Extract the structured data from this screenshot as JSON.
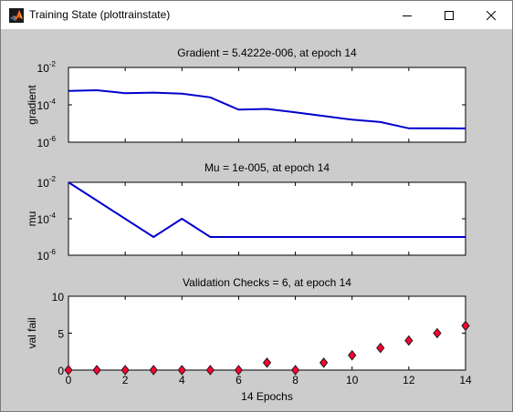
{
  "window": {
    "title": "Training State (plottrainstate)",
    "icon": "matlab-icon",
    "controls": [
      "minimize",
      "maximize",
      "close"
    ]
  },
  "chart_data": [
    {
      "type": "line",
      "title": "Gradient = 5.4222e-006, at epoch 14",
      "xlabel": "",
      "ylabel": "gradient",
      "yscale": "log",
      "ylim": [
        1e-06,
        0.01
      ],
      "xlim": [
        0,
        14
      ],
      "yticks": [
        {
          "value": 1e-06,
          "base": "10",
          "exp": "-6"
        },
        {
          "value": 0.0001,
          "base": "10",
          "exp": "-4"
        },
        {
          "value": 0.01,
          "base": "10",
          "exp": "-2"
        }
      ],
      "color": "#0000cc",
      "x": [
        0,
        1,
        2,
        3,
        4,
        5,
        6,
        7,
        8,
        9,
        10,
        11,
        12,
        13,
        14
      ],
      "y": [
        0.00055,
        0.0006,
        0.00042,
        0.00045,
        0.0004,
        0.00025,
        5.5e-05,
        6e-05,
        4e-05,
        2.5e-05,
        1.6e-05,
        1.2e-05,
        5.5e-06,
        5.5e-06,
        5.4222e-06
      ]
    },
    {
      "type": "line",
      "title": "Mu = 1e-005, at epoch 14",
      "xlabel": "",
      "ylabel": "mu",
      "yscale": "log",
      "ylim": [
        1e-06,
        0.01
      ],
      "xlim": [
        0,
        14
      ],
      "yticks": [
        {
          "value": 1e-06,
          "base": "10",
          "exp": "-6"
        },
        {
          "value": 0.0001,
          "base": "10",
          "exp": "-4"
        },
        {
          "value": 0.01,
          "base": "10",
          "exp": "-2"
        }
      ],
      "color": "#0000cc",
      "x": [
        0,
        1,
        2,
        3,
        4,
        5,
        6,
        7,
        8,
        9,
        10,
        11,
        12,
        13,
        14
      ],
      "y": [
        0.01,
        0.001,
        0.0001,
        1e-05,
        0.0001,
        1e-05,
        1e-05,
        1e-05,
        1e-05,
        1e-05,
        1e-05,
        1e-05,
        1e-05,
        1e-05,
        1e-05
      ]
    },
    {
      "type": "scatter",
      "title": "Validation Checks = 6, at epoch 14",
      "xlabel": "14 Epochs",
      "ylabel": "val fail",
      "yscale": "linear",
      "ylim": [
        0,
        10
      ],
      "xlim": [
        0,
        14
      ],
      "yticks": [
        {
          "value": 0,
          "label": "0"
        },
        {
          "value": 5,
          "label": "5"
        },
        {
          "value": 10,
          "label": "10"
        }
      ],
      "xticks": [
        "0",
        "2",
        "4",
        "6",
        "8",
        "10",
        "12",
        "14"
      ],
      "marker_color": "#ff0033",
      "x": [
        0,
        1,
        2,
        3,
        4,
        5,
        6,
        7,
        8,
        9,
        10,
        11,
        12,
        13,
        14
      ],
      "y": [
        0,
        0,
        0,
        0,
        0,
        0,
        0,
        1,
        0,
        1,
        2,
        3,
        4,
        5,
        6
      ]
    }
  ]
}
